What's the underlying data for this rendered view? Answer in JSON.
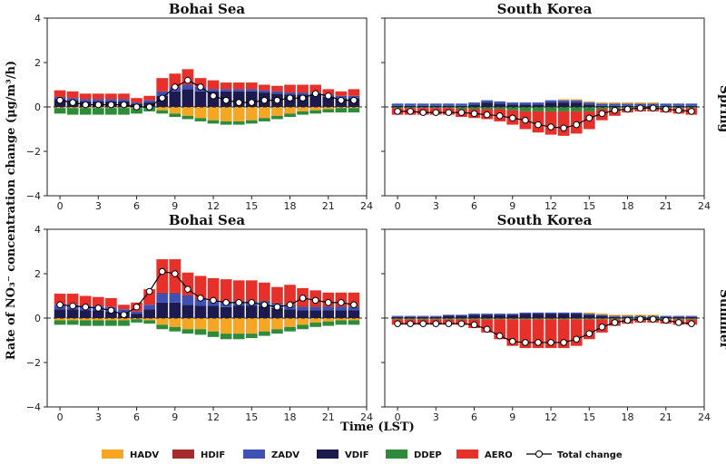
{
  "figure": {
    "ylabel": "Rate of NO₃⁻ concentration change (μg/m³/h)",
    "xlabel": "Time (LST)",
    "row_labels": [
      "Spring",
      "Summer"
    ]
  },
  "legend": [
    {
      "name": "HADV",
      "color": "#f5a623"
    },
    {
      "name": "HDIF",
      "color": "#a52a2a"
    },
    {
      "name": "ZADV",
      "color": "#3f51b5"
    },
    {
      "name": "VDIF",
      "color": "#1c1a4f"
    },
    {
      "name": "DDEP",
      "color": "#2e8b3a"
    },
    {
      "name": "AERO",
      "color": "#e8302a"
    },
    {
      "name": "Total change",
      "color": "#000000"
    }
  ],
  "chart_data": [
    {
      "type": "bar",
      "stacked": true,
      "title": "Bohai Sea",
      "season": "Spring",
      "x": [
        0,
        1,
        2,
        3,
        4,
        5,
        6,
        7,
        8,
        9,
        10,
        11,
        12,
        13,
        14,
        15,
        16,
        17,
        18,
        19,
        20,
        21,
        22,
        23
      ],
      "xticks": [
        0,
        3,
        6,
        9,
        12,
        15,
        18,
        21,
        24
      ],
      "ylim": [
        -4,
        4
      ],
      "yticks": [
        -4,
        -2,
        0,
        2,
        4
      ],
      "series": [
        {
          "name": "VDIF",
          "values": [
            0.35,
            0.3,
            0.25,
            0.25,
            0.25,
            0.25,
            0.15,
            0.2,
            0.5,
            0.7,
            0.8,
            0.7,
            0.7,
            0.7,
            0.7,
            0.7,
            0.65,
            0.6,
            0.55,
            0.55,
            0.55,
            0.45,
            0.4,
            0.4
          ]
        },
        {
          "name": "ZADV",
          "values": [
            0.1,
            0.1,
            0.1,
            0.1,
            0.1,
            0.1,
            0.05,
            0.1,
            0.2,
            0.2,
            0.2,
            0.2,
            0.1,
            0.1,
            0.1,
            0.1,
            0.1,
            0.1,
            0.1,
            0.1,
            0.1,
            0.1,
            0.1,
            0.1
          ]
        },
        {
          "name": "AERO",
          "values": [
            0.3,
            0.3,
            0.25,
            0.25,
            0.25,
            0.25,
            0.2,
            0.2,
            0.6,
            0.6,
            0.7,
            0.4,
            0.4,
            0.3,
            0.3,
            0.3,
            0.25,
            0.25,
            0.35,
            0.35,
            0.35,
            0.25,
            0.2,
            0.3
          ]
        },
        {
          "name": "HADV",
          "values": [
            -0.05,
            -0.05,
            -0.05,
            -0.05,
            -0.05,
            -0.05,
            -0.05,
            0.0,
            -0.15,
            -0.3,
            -0.4,
            -0.5,
            -0.6,
            -0.65,
            -0.65,
            -0.6,
            -0.5,
            -0.4,
            -0.3,
            -0.2,
            -0.15,
            -0.1,
            -0.05,
            -0.05
          ]
        },
        {
          "name": "DDEP",
          "values": [
            -0.25,
            -0.3,
            -0.3,
            -0.3,
            -0.3,
            -0.3,
            -0.25,
            -0.2,
            -0.15,
            -0.15,
            -0.15,
            -0.15,
            -0.15,
            -0.15,
            -0.15,
            -0.15,
            -0.15,
            -0.15,
            -0.15,
            -0.15,
            -0.15,
            -0.15,
            -0.2,
            -0.2
          ]
        },
        {
          "name": "Total change",
          "values": [
            0.3,
            0.2,
            0.1,
            0.1,
            0.1,
            0.1,
            0.0,
            0.0,
            0.4,
            0.9,
            1.2,
            0.9,
            0.5,
            0.3,
            0.2,
            0.2,
            0.3,
            0.3,
            0.4,
            0.4,
            0.6,
            0.5,
            0.3,
            0.3
          ]
        }
      ]
    },
    {
      "type": "bar",
      "stacked": true,
      "title": "South Korea",
      "season": "Spring",
      "x": [
        0,
        1,
        2,
        3,
        4,
        5,
        6,
        7,
        8,
        9,
        10,
        11,
        12,
        13,
        14,
        15,
        16,
        17,
        18,
        19,
        20,
        21,
        22,
        23
      ],
      "xticks": [
        0,
        3,
        6,
        9,
        12,
        15,
        18,
        21,
        24
      ],
      "ylim": [
        -4,
        4
      ],
      "yticks": [
        -4,
        -2,
        0,
        2,
        4
      ],
      "series": [
        {
          "name": "VDIF",
          "values": [
            0.05,
            0.05,
            0.05,
            0.05,
            0.05,
            0.05,
            0.1,
            0.2,
            0.15,
            0.1,
            0.1,
            0.1,
            0.2,
            0.2,
            0.2,
            0.1,
            0.05,
            0.05,
            0.05,
            0.05,
            0.05,
            0.05,
            0.05,
            0.05
          ]
        },
        {
          "name": "ZADV",
          "values": [
            0.1,
            0.1,
            0.1,
            0.1,
            0.1,
            0.1,
            0.1,
            0.1,
            0.1,
            0.1,
            0.1,
            0.1,
            0.1,
            0.1,
            0.1,
            0.1,
            0.1,
            0.1,
            0.1,
            0.1,
            0.1,
            0.1,
            0.1,
            0.1
          ]
        },
        {
          "name": "HADV",
          "values": [
            0.0,
            0.0,
            0.0,
            0.0,
            0.0,
            0.0,
            0.0,
            0.0,
            0.0,
            0.0,
            0.0,
            0.0,
            0.0,
            0.05,
            0.05,
            0.05,
            0.05,
            0.05,
            0.05,
            0.05,
            0.05,
            0.0,
            0.0,
            0.0
          ]
        },
        {
          "name": "DDEP",
          "values": [
            -0.05,
            -0.05,
            -0.05,
            -0.05,
            -0.05,
            -0.1,
            -0.1,
            -0.1,
            -0.1,
            -0.15,
            -0.2,
            -0.2,
            -0.2,
            -0.2,
            -0.2,
            -0.2,
            -0.1,
            -0.1,
            -0.05,
            -0.05,
            -0.05,
            -0.05,
            -0.05,
            -0.05
          ]
        },
        {
          "name": "AERO",
          "values": [
            -0.3,
            -0.3,
            -0.3,
            -0.3,
            -0.3,
            -0.35,
            -0.4,
            -0.45,
            -0.55,
            -0.65,
            -0.8,
            -0.95,
            -1.05,
            -1.1,
            -1.0,
            -0.8,
            -0.5,
            -0.3,
            -0.2,
            -0.15,
            -0.15,
            -0.2,
            -0.25,
            -0.3
          ]
        },
        {
          "name": "Total change",
          "values": [
            -0.2,
            -0.2,
            -0.25,
            -0.25,
            -0.25,
            -0.25,
            -0.3,
            -0.35,
            -0.4,
            -0.5,
            -0.6,
            -0.8,
            -0.9,
            -0.95,
            -0.8,
            -0.5,
            -0.3,
            -0.15,
            -0.1,
            -0.05,
            -0.05,
            -0.1,
            -0.15,
            -0.2
          ]
        }
      ]
    },
    {
      "type": "bar",
      "stacked": true,
      "title": "Bohai Sea",
      "season": "Summer",
      "x": [
        0,
        1,
        2,
        3,
        4,
        5,
        6,
        7,
        8,
        9,
        10,
        11,
        12,
        13,
        14,
        15,
        16,
        17,
        18,
        19,
        20,
        21,
        22,
        23
      ],
      "xticks": [
        0,
        3,
        6,
        9,
        12,
        15,
        18,
        21,
        24
      ],
      "ylim": [
        -4,
        4
      ],
      "yticks": [
        -4,
        -2,
        0,
        2,
        4
      ],
      "series": [
        {
          "name": "VDIF",
          "values": [
            0.4,
            0.4,
            0.35,
            0.35,
            0.3,
            0.25,
            0.2,
            0.4,
            0.7,
            0.7,
            0.6,
            0.55,
            0.55,
            0.5,
            0.55,
            0.55,
            0.55,
            0.45,
            0.4,
            0.35,
            0.35,
            0.35,
            0.35,
            0.35
          ]
        },
        {
          "name": "ZADV",
          "values": [
            0.2,
            0.2,
            0.2,
            0.2,
            0.2,
            0.15,
            0.1,
            0.2,
            0.4,
            0.4,
            0.4,
            0.3,
            0.2,
            0.2,
            0.2,
            0.2,
            0.2,
            0.2,
            0.15,
            0.15,
            0.15,
            0.15,
            0.15,
            0.15
          ]
        },
        {
          "name": "HDIF",
          "values": [
            0.0,
            0.0,
            0.0,
            0.0,
            0.0,
            0.0,
            0.0,
            0.0,
            0.05,
            0.05,
            0.05,
            0.05,
            0.05,
            0.05,
            0.05,
            0.05,
            0.05,
            0.05,
            0.05,
            0.05,
            0.05,
            0.05,
            0.05,
            0.05
          ]
        },
        {
          "name": "AERO",
          "values": [
            0.5,
            0.5,
            0.45,
            0.4,
            0.4,
            0.2,
            0.4,
            0.7,
            1.5,
            1.5,
            1.0,
            1.0,
            1.0,
            1.0,
            0.9,
            0.9,
            0.8,
            0.7,
            0.9,
            0.8,
            0.7,
            0.6,
            0.6,
            0.6
          ]
        },
        {
          "name": "HADV",
          "values": [
            -0.1,
            -0.1,
            -0.1,
            -0.1,
            -0.1,
            -0.1,
            -0.05,
            -0.1,
            -0.3,
            -0.4,
            -0.5,
            -0.5,
            -0.6,
            -0.7,
            -0.7,
            -0.7,
            -0.6,
            -0.5,
            -0.4,
            -0.3,
            -0.2,
            -0.15,
            -0.1,
            -0.1
          ]
        },
        {
          "name": "DDEP",
          "values": [
            -0.2,
            -0.2,
            -0.25,
            -0.25,
            -0.25,
            -0.25,
            -0.15,
            -0.15,
            -0.2,
            -0.2,
            -0.2,
            -0.25,
            -0.25,
            -0.25,
            -0.25,
            -0.2,
            -0.2,
            -0.2,
            -0.2,
            -0.2,
            -0.2,
            -0.2,
            -0.2,
            -0.2
          ]
        },
        {
          "name": "Total change",
          "values": [
            0.6,
            0.55,
            0.5,
            0.45,
            0.35,
            0.15,
            0.5,
            1.2,
            2.1,
            2.0,
            1.3,
            0.9,
            0.8,
            0.7,
            0.7,
            0.7,
            0.6,
            0.5,
            0.6,
            0.9,
            0.8,
            0.7,
            0.7,
            0.6
          ]
        }
      ]
    },
    {
      "type": "bar",
      "stacked": true,
      "title": "South Korea",
      "season": "Summer",
      "x": [
        0,
        1,
        2,
        3,
        4,
        5,
        6,
        7,
        8,
        9,
        10,
        11,
        12,
        13,
        14,
        15,
        16,
        17,
        18,
        19,
        20,
        21,
        22,
        23
      ],
      "xticks": [
        0,
        3,
        6,
        9,
        12,
        15,
        18,
        21,
        24
      ],
      "ylim": [
        -4,
        4
      ],
      "yticks": [
        -4,
        -2,
        0,
        2,
        4
      ],
      "series": [
        {
          "name": "VDIF",
          "values": [
            0.05,
            0.05,
            0.05,
            0.05,
            0.1,
            0.1,
            0.15,
            0.15,
            0.15,
            0.15,
            0.2,
            0.2,
            0.2,
            0.2,
            0.2,
            0.15,
            0.1,
            0.05,
            0.05,
            0.05,
            0.05,
            0.05,
            0.05,
            0.05
          ]
        },
        {
          "name": "ZADV",
          "values": [
            0.05,
            0.05,
            0.05,
            0.05,
            0.05,
            0.05,
            0.05,
            0.05,
            0.05,
            0.05,
            0.05,
            0.05,
            0.05,
            0.05,
            0.05,
            0.05,
            0.05,
            0.05,
            0.05,
            0.05,
            0.05,
            0.05,
            0.05,
            0.05
          ]
        },
        {
          "name": "HADV",
          "values": [
            0.0,
            0.0,
            0.0,
            0.0,
            0.0,
            0.0,
            0.0,
            0.0,
            0.0,
            0.0,
            0.0,
            0.0,
            0.0,
            0.0,
            0.0,
            0.05,
            0.05,
            0.05,
            0.05,
            0.05,
            0.05,
            0.0,
            0.0,
            0.0
          ]
        },
        {
          "name": "DDEP",
          "values": [
            -0.05,
            -0.05,
            -0.05,
            -0.05,
            -0.05,
            -0.05,
            -0.05,
            -0.05,
            -0.05,
            -0.05,
            -0.05,
            -0.05,
            -0.05,
            -0.05,
            -0.05,
            -0.05,
            -0.05,
            -0.05,
            -0.05,
            -0.05,
            -0.05,
            -0.05,
            -0.05,
            -0.05
          ]
        },
        {
          "name": "AERO",
          "values": [
            -0.25,
            -0.25,
            -0.25,
            -0.25,
            -0.25,
            -0.25,
            -0.4,
            -0.6,
            -0.9,
            -1.2,
            -1.3,
            -1.3,
            -1.3,
            -1.3,
            -1.2,
            -0.9,
            -0.6,
            -0.3,
            -0.2,
            -0.15,
            -0.15,
            -0.2,
            -0.25,
            -0.25
          ]
        },
        {
          "name": "Total change",
          "values": [
            -0.25,
            -0.25,
            -0.25,
            -0.25,
            -0.25,
            -0.25,
            -0.3,
            -0.5,
            -0.8,
            -1.05,
            -1.1,
            -1.1,
            -1.1,
            -1.1,
            -0.95,
            -0.7,
            -0.4,
            -0.2,
            -0.1,
            -0.05,
            -0.05,
            -0.1,
            -0.2,
            -0.25
          ]
        }
      ]
    }
  ]
}
